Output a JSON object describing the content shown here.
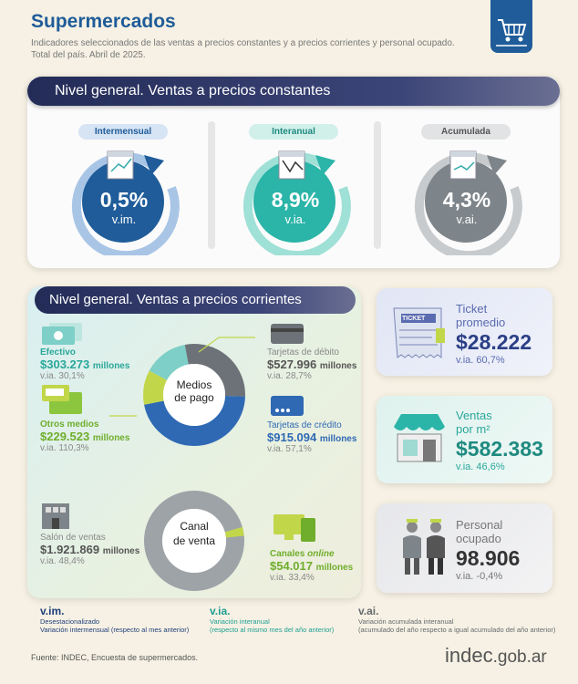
{
  "header": {
    "title": "Supermercados",
    "subtitle1": "Indicadores seleccionados de las ventas a precios constantes y a precios corrientes y personal ocupado.",
    "subtitle2": "Total del país. Abril de 2025."
  },
  "constant": {
    "title": "Nivel general. Ventas a precios constantes",
    "cards": [
      {
        "label": "Intermensual",
        "value": "0,5%",
        "unit": "v.im.",
        "color": "#1f5c99",
        "pill_bg": "#d6e4f4"
      },
      {
        "label": "Interanual",
        "value": "8,9%",
        "unit": "v.ia.",
        "color": "#2bb4a8",
        "pill_bg": "#d2f0ea"
      },
      {
        "label": "Acumulada",
        "value": "4,3%",
        "unit": "v.ai.",
        "color": "#7e858a",
        "pill_bg": "#e2e3e4"
      }
    ]
  },
  "current": {
    "title": "Nivel general. Ventas a precios corrientes",
    "payment_center": [
      "Medios",
      "de pago"
    ],
    "efectivo": {
      "label": "Efectivo",
      "value": "$303.273",
      "unit": "millones",
      "via": "v.ia. 30,1%"
    },
    "otros": {
      "label": "Otros medios",
      "value": "$229.523",
      "unit": "millones",
      "via": "v.ia. 110,3%"
    },
    "debito": {
      "label": "Tarjetas de débito",
      "value": "$527.996",
      "unit": "millones",
      "via": "v.ia. 28,7%"
    },
    "credito": {
      "label": "Tarjetas de crédito",
      "value": "$915.094",
      "unit": "millones",
      "via": "v.ia. 57,1%"
    },
    "channel_center": [
      "Canal",
      "de venta"
    ],
    "salon": {
      "label": "Salón de ventas",
      "value": "$1.921.869",
      "unit": "millones",
      "via": "v.ia. 48,4%"
    },
    "online": {
      "label": "Canales",
      "label_em": "online",
      "value": "$54.017",
      "unit": "millones",
      "via": "v.ia. 33,4%"
    }
  },
  "kpis": {
    "ticket": {
      "title1": "Ticket",
      "title2": "promedio",
      "value": "$28.222",
      "via": "v.ia. 60,7%",
      "badge": "TICKET"
    },
    "ventas": {
      "title1": "Ventas",
      "title2": "por m²",
      "value": "$582.383",
      "via": "v.ia. 46,6%"
    },
    "personal": {
      "title1": "Personal",
      "title2": "ocupado",
      "value": "98.906",
      "via": "v.ia. -0,4%"
    }
  },
  "legend": [
    {
      "abbr": "v.im.",
      "line1": "Desestacionalizado",
      "line2": "Variación intermensual (respecto al mes anterior)",
      "color": "#1f3f7a"
    },
    {
      "abbr": "v.ia.",
      "line1": "Variación interanual",
      "line2": "(respecto al mismo mes del año anterior)",
      "color": "#1e9e93"
    },
    {
      "abbr": "v.ai.",
      "line1": "Variación acumulada interanual",
      "line2": "(acumulado del año respecto a igual acumulado del año anterior)",
      "color": "#666a6e"
    }
  ],
  "footer": {
    "source": "Fuente: INDEC, Encuesta de supermercados.",
    "logo_main": "indec",
    "logo_tld": ".gob.ar"
  },
  "colors": {
    "navy": "#1f5c99",
    "teal": "#2bb4a8",
    "gray": "#7e858a",
    "green": "#6fae2c"
  },
  "icons": [
    "shopping-cart-icon",
    "calendar-chart-icon",
    "banknote-icon",
    "card-icon",
    "building-icon",
    "monitor-phone-icon",
    "ticket-icon",
    "store-icon",
    "workers-icon"
  ]
}
